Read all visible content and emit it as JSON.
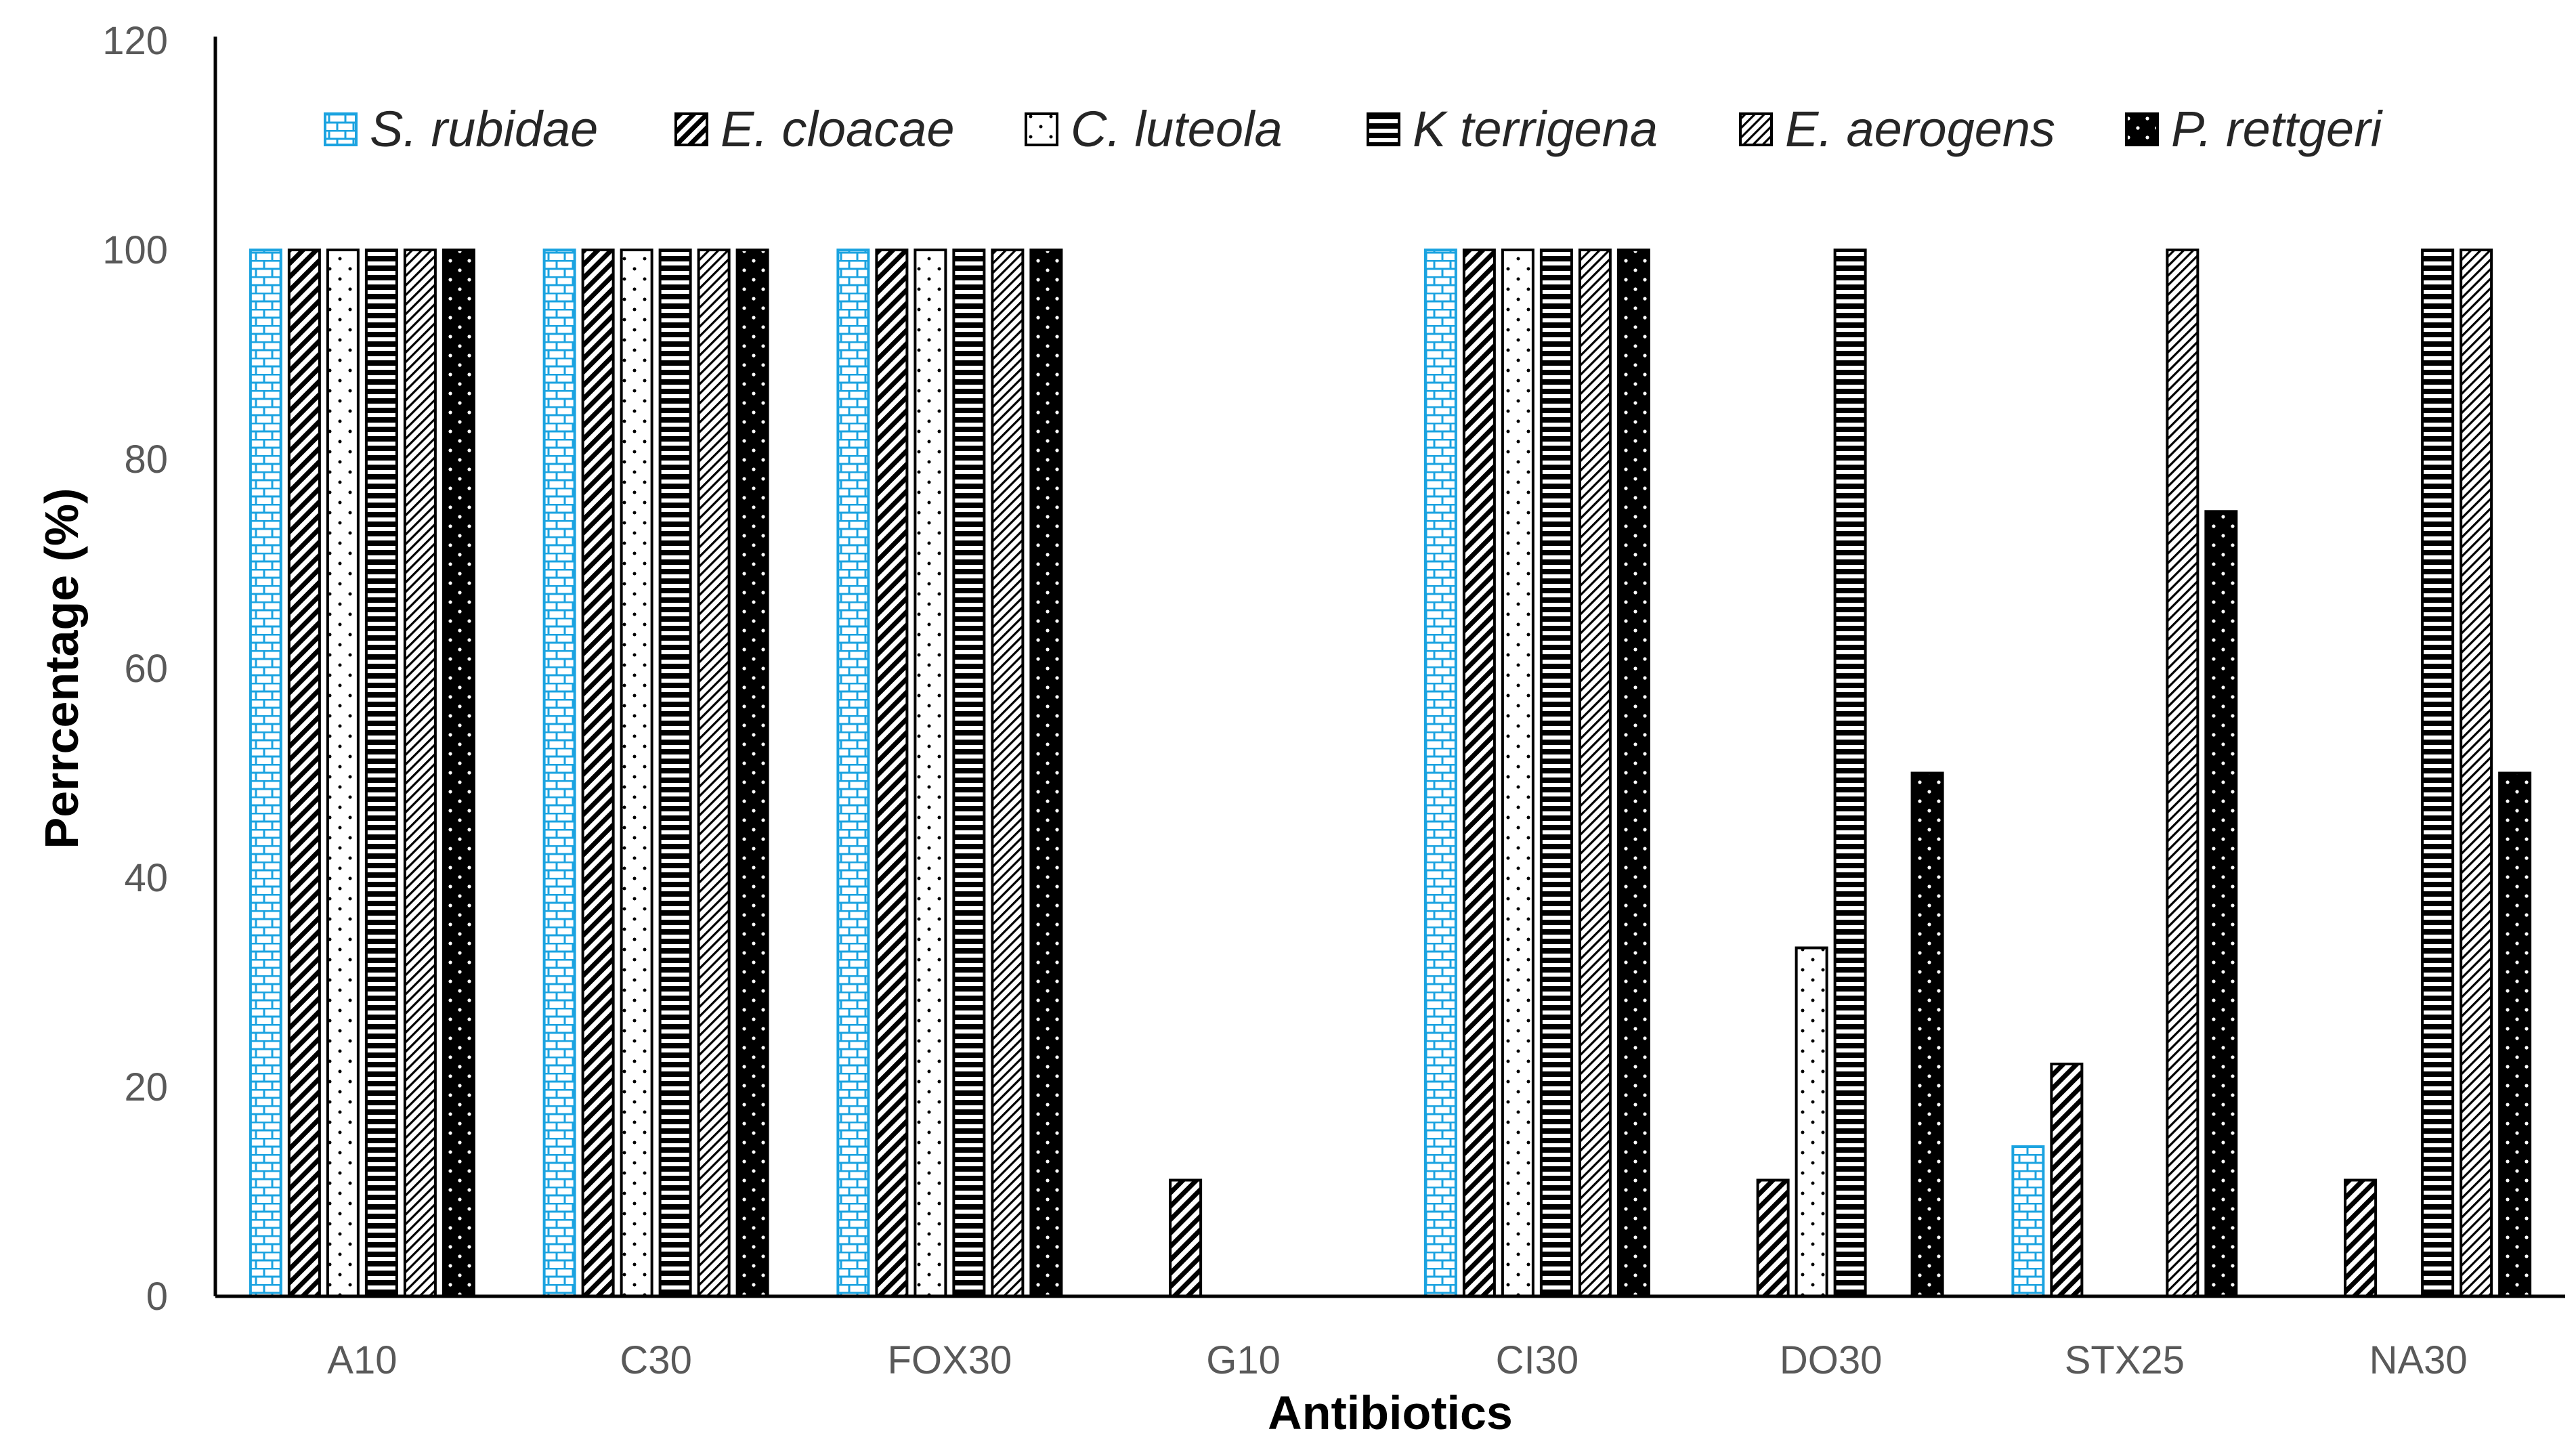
{
  "chart_data": {
    "type": "bar",
    "title": "",
    "xlabel": "Antibiotics",
    "ylabel": "Perrcentage (%)",
    "ylim": [
      0,
      120
    ],
    "yticks": [
      0,
      20,
      40,
      60,
      80,
      100,
      120
    ],
    "grid": false,
    "legend_position": "top",
    "categories": [
      "A10",
      "C30",
      "FOX30",
      "G10",
      "CI30",
      "DO30",
      "STX25",
      "NA30"
    ],
    "series": [
      {
        "name": "S. rubidae",
        "pattern": "brick",
        "color": "#1BA3E0",
        "values": [
          100,
          100,
          100,
          0,
          100,
          0,
          14.3,
          0
        ]
      },
      {
        "name": "E. cloacae",
        "pattern": "wide-diagonal",
        "color": "#000000",
        "values": [
          100,
          100,
          100,
          11.1,
          100,
          11.1,
          22.2,
          11.1
        ]
      },
      {
        "name": "C. luteola",
        "pattern": "sparse-dots",
        "color": "#000000",
        "values": [
          100,
          100,
          100,
          0,
          100,
          33.3,
          0,
          0
        ]
      },
      {
        "name": "K terrigena",
        "pattern": "horizontal-lines",
        "color": "#000000",
        "values": [
          100,
          100,
          100,
          0,
          100,
          100,
          0,
          100
        ]
      },
      {
        "name": "E. aerogens",
        "pattern": "light-diagonal",
        "color": "#000000",
        "values": [
          100,
          100,
          100,
          0,
          100,
          0,
          100,
          100
        ]
      },
      {
        "name": "P. rettgeri",
        "pattern": "solid-dots",
        "color": "#000000",
        "values": [
          100,
          100,
          100,
          0,
          100,
          50,
          75,
          50
        ]
      }
    ]
  }
}
